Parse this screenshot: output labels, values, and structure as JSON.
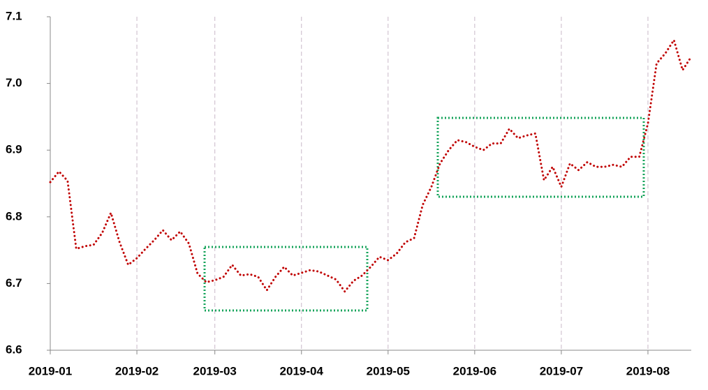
{
  "chart_data": {
    "type": "line",
    "categories": [
      "2019-01",
      null,
      null,
      null,
      null,
      null,
      null,
      null,
      null,
      null,
      "2019-02",
      null,
      null,
      null,
      null,
      null,
      null,
      null,
      null,
      "2019-03",
      null,
      null,
      null,
      null,
      null,
      null,
      null,
      null,
      null,
      "2019-04",
      null,
      null,
      null,
      null,
      null,
      null,
      null,
      null,
      null,
      "2019-05",
      null,
      null,
      null,
      null,
      null,
      null,
      null,
      null,
      null,
      "2019-06",
      null,
      null,
      null,
      null,
      null,
      null,
      null,
      null,
      null,
      "2019-07",
      null,
      null,
      null,
      null,
      null,
      null,
      null,
      null,
      null,
      "2019-08",
      null,
      null,
      null,
      null,
      null
    ],
    "values": [
      6.852,
      6.868,
      6.854,
      6.752,
      6.756,
      6.758,
      6.776,
      6.806,
      6.762,
      6.728,
      6.738,
      6.752,
      6.765,
      6.78,
      6.765,
      6.778,
      6.76,
      6.715,
      6.702,
      6.705,
      6.71,
      6.728,
      6.712,
      6.714,
      6.71,
      6.69,
      6.71,
      6.725,
      6.712,
      6.716,
      6.72,
      6.718,
      6.712,
      6.706,
      6.688,
      6.704,
      6.712,
      6.725,
      6.74,
      6.735,
      6.745,
      6.762,
      6.768,
      6.818,
      6.845,
      6.88,
      6.9,
      6.915,
      6.912,
      6.905,
      6.9,
      6.91,
      6.91,
      6.932,
      6.918,
      6.922,
      6.925,
      6.855,
      6.875,
      6.845,
      6.88,
      6.87,
      6.882,
      6.875,
      6.875,
      6.878,
      6.875,
      6.89,
      6.89,
      6.94,
      7.03,
      7.045,
      7.065,
      7.02,
      7.04
    ],
    "color": "#c00000",
    "ylim": [
      6.6,
      7.1
    ],
    "yticks": [
      6.6,
      6.7,
      6.8,
      6.9,
      {
        "value": 7,
        "label": "7.0"
      },
      7.1
    ],
    "grid": true
  }
}
